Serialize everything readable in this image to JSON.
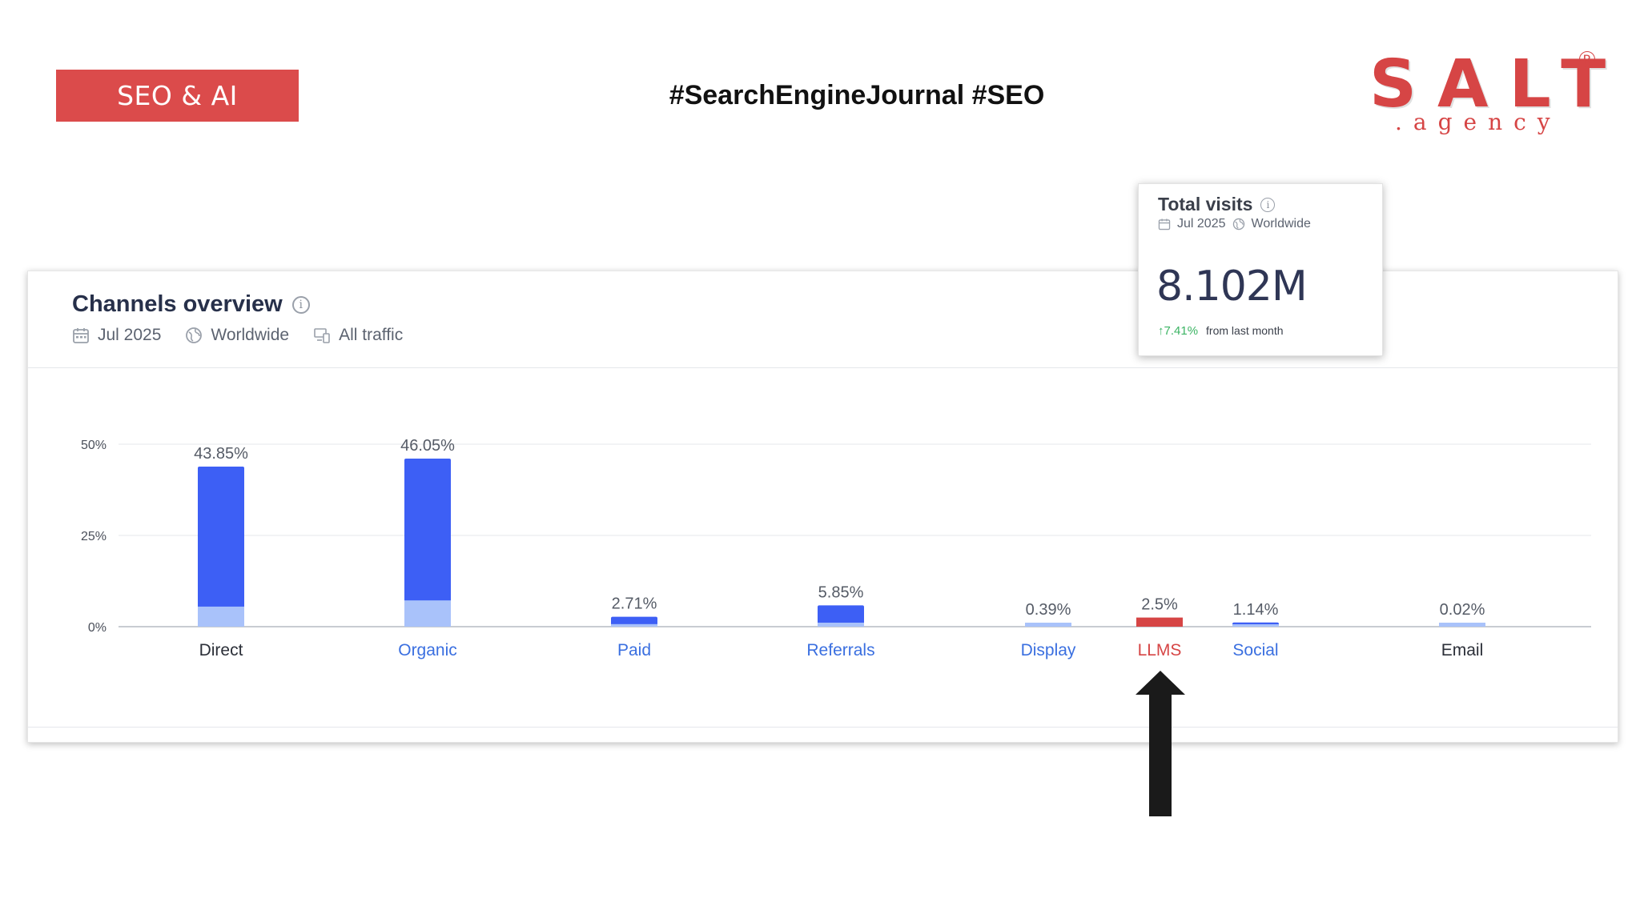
{
  "header": {
    "tag": "SEO & AI",
    "hashtags": "#SearchEngineJournal #SEO",
    "logo": {
      "main": "SALT",
      "sub": ".agency",
      "reg": "R"
    }
  },
  "panel": {
    "title": "Channels overview",
    "meta": {
      "date": "Jul 2025",
      "region": "Worldwide",
      "traffic": "All traffic"
    }
  },
  "visits_card": {
    "title": "Total visits",
    "date": "Jul 2025",
    "region": "Worldwide",
    "value": "8.102M",
    "change": "7.41%",
    "change_text": "from last month"
  },
  "colors": {
    "accent": "#db4b4b",
    "bar_dark": "#3d5ff5",
    "bar_light": "#a9c2fa",
    "llms": "#d64545",
    "link": "#3a6fe0",
    "positive": "#3cb464"
  },
  "chart_data": {
    "type": "bar",
    "title": "Channels overview",
    "categories": [
      "Direct",
      "Organic",
      "Paid",
      "Referrals",
      "Display",
      "LLMS",
      "Social",
      "Email"
    ],
    "values": [
      43.85,
      46.05,
      2.71,
      5.85,
      0.39,
      2.5,
      1.14,
      0.02
    ],
    "labels": [
      "43.85%",
      "46.05%",
      "2.71%",
      "5.85%",
      "0.39%",
      "2.5%",
      "1.14%",
      "0.02%"
    ],
    "secondary_values": [
      5.5,
      7.2,
      0.7,
      1.1,
      0.39,
      0,
      0.3,
      0.02
    ],
    "highlight": [
      "normal",
      "normal",
      "normal",
      "normal",
      "normal",
      "llms",
      "normal",
      "normal"
    ],
    "label_style": [
      "dark",
      "link",
      "link",
      "link",
      "link",
      "llms",
      "link",
      "dark"
    ],
    "yticks": [
      "0%",
      "25%",
      "50%"
    ],
    "ylim": [
      0,
      50
    ],
    "grid": true,
    "legend": "none"
  }
}
